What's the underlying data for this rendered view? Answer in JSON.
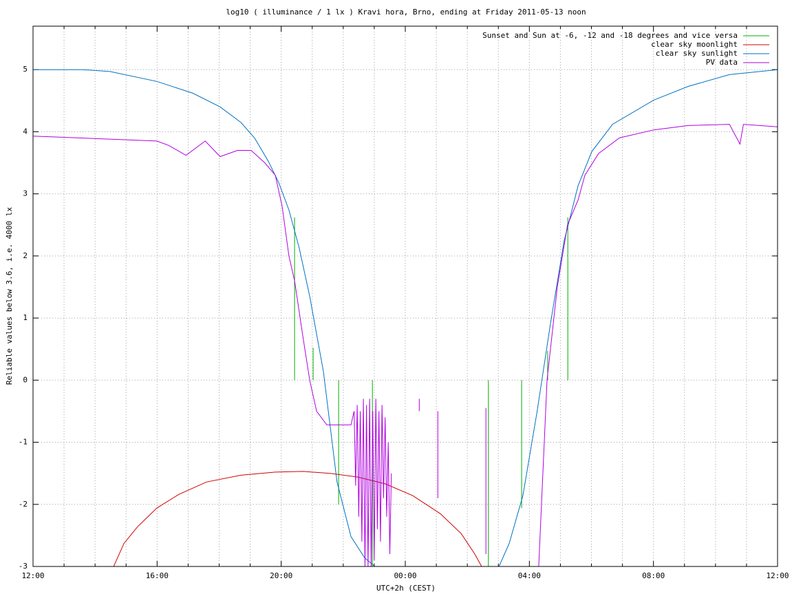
{
  "chart_data": {
    "type": "line",
    "title": "log10 ( illuminance / 1 lx ) Kravi hora, Brno, ending at Friday 2011-05-13 noon",
    "x_label": "UTC+2h (CEST)",
    "y_label": "Reliable values below 3.6, i.e. 4000 lx",
    "xlim": [
      0,
      24
    ],
    "ylim": [
      -3,
      5.7
    ],
    "xticks": [
      {
        "value": 0,
        "label": "12:00"
      },
      {
        "value": 4,
        "label": "16:00"
      },
      {
        "value": 8,
        "label": "20:00"
      },
      {
        "value": 12,
        "label": "00:00"
      },
      {
        "value": 16,
        "label": "04:00"
      },
      {
        "value": 20,
        "label": "08:00"
      },
      {
        "value": 24,
        "label": "12:00"
      }
    ],
    "xminorticks": [
      1,
      2,
      3,
      5,
      6,
      7,
      9,
      10,
      11,
      13,
      14,
      15,
      17,
      18,
      19,
      21,
      22,
      23
    ],
    "yticks": [
      -3,
      -2,
      -1,
      0,
      1,
      2,
      3,
      4,
      5
    ],
    "grid": true,
    "legend": "top-right",
    "series": [
      {
        "name": "Sunset and Sun at -6, -12 and -18 degrees and vice versa",
        "color": "#00b000",
        "x": [
          8.43,
          8.43,
          null,
          9.03,
          9.03,
          null,
          9.85,
          9.85,
          null,
          10.94,
          10.94,
          null,
          14.68,
          14.68,
          null,
          15.75,
          15.75,
          null,
          16.59,
          16.59,
          null,
          17.24,
          17.24
        ],
        "values": [
          0,
          2.62,
          null,
          0,
          0.52,
          null,
          0,
          -2.0,
          null,
          0,
          -3,
          null,
          0,
          -3,
          null,
          0,
          -2.06,
          null,
          0,
          0.47,
          null,
          0,
          2.62
        ]
      },
      {
        "name": "clear sky moonlight",
        "color": "#d00000",
        "x": [
          2.6,
          2.93,
          3.37,
          3.99,
          4.7,
          5.59,
          6.7,
          7.81,
          8.7,
          9.58,
          10.47,
          11.36,
          12.24,
          13.13,
          13.8,
          14.24,
          14.46
        ],
        "values": [
          -3,
          -2.63,
          -2.36,
          -2.06,
          -1.84,
          -1.64,
          -1.53,
          -1.48,
          -1.47,
          -1.5,
          -1.56,
          -1.67,
          -1.86,
          -2.15,
          -2.47,
          -2.8,
          -3
        ]
      },
      {
        "name": "clear sky sunlight",
        "color": "#0070c0",
        "x": [
          0,
          1.6,
          2.48,
          3.99,
          5.15,
          6.03,
          6.7,
          7.14,
          7.59,
          7.92,
          8.25,
          8.58,
          8.92,
          9.36,
          9.8,
          10.25,
          10.69,
          11.02,
          null,
          15.02,
          15.35,
          15.79,
          16.24,
          16.68,
          17.12,
          17.57,
          18.01,
          18.68,
          20.01,
          21.12,
          22.45,
          24
        ],
        "values": [
          5.0,
          5.0,
          4.97,
          4.81,
          4.62,
          4.4,
          4.15,
          3.9,
          3.52,
          3.18,
          2.74,
          2.13,
          1.35,
          0.14,
          -1.64,
          -2.52,
          -2.86,
          -3,
          null,
          -3,
          -2.63,
          -1.86,
          -0.53,
          0.91,
          2.24,
          3.13,
          3.68,
          4.12,
          4.51,
          4.73,
          4.92,
          5.0
        ]
      },
      {
        "name": "PV data",
        "color": "#b000e0",
        "x": [
          0,
          1.5,
          3.99,
          4.37,
          4.93,
          5.55,
          6.03,
          6.59,
          7.03,
          7.47,
          7.81,
          8.03,
          8.25,
          8.43,
          8.7,
          8.92,
          9.14,
          9.47,
          10.25,
          10.35,
          10.4,
          10.45,
          10.5,
          10.55,
          10.6,
          10.65,
          10.7,
          10.75,
          10.8,
          10.85,
          10.9,
          10.95,
          11.0,
          11.05,
          11.1,
          11.15,
          11.2,
          11.25,
          11.3,
          11.35,
          11.4,
          11.45,
          11.5,
          11.55,
          null,
          12.45,
          12.45,
          null,
          13.05,
          13.05,
          null,
          14.6,
          14.6,
          null,
          16.3,
          16.57,
          16.9,
          17.23,
          17.57,
          17.79,
          18.23,
          18.9,
          20.01,
          21.12,
          22.45,
          22.79,
          22.9,
          24
        ],
        "values": [
          3.93,
          3.9,
          3.85,
          3.78,
          3.62,
          3.85,
          3.6,
          3.7,
          3.7,
          3.5,
          3.3,
          2.8,
          2.0,
          1.6,
          0.7,
          0.0,
          -0.5,
          -0.72,
          -0.72,
          -0.5,
          -1.7,
          -0.4,
          -2.2,
          -0.5,
          -2.6,
          -0.3,
          -3,
          -0.4,
          -3,
          -0.3,
          -3,
          -0.5,
          -2.9,
          -0.3,
          -2.4,
          -0.5,
          -2.6,
          -0.4,
          -1.9,
          -0.6,
          -2.2,
          -1.0,
          -2.8,
          -1.5,
          null,
          -0.3,
          -0.5,
          null,
          -0.5,
          -1.9,
          null,
          -0.45,
          -2.8,
          null,
          -3,
          0.0,
          1.5,
          2.5,
          2.9,
          3.3,
          3.65,
          3.9,
          4.03,
          4.1,
          4.12,
          3.8,
          4.12,
          4.08
        ]
      }
    ]
  }
}
